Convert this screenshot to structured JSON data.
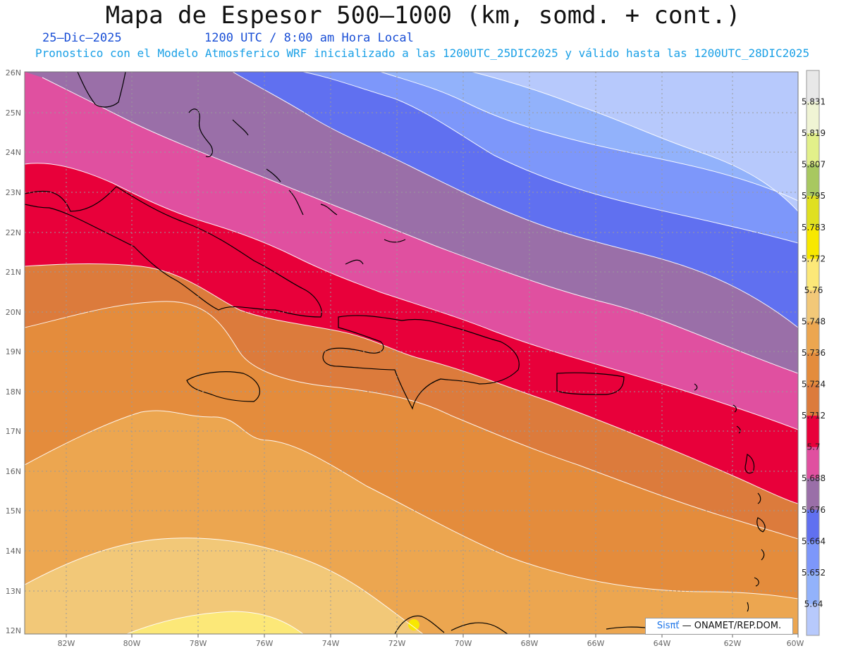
{
  "title": "Mapa de Espesor 500—1000 (km, somd. + cont.)",
  "date": "25—Dic—2025",
  "time": "1200 UTC / 8:00 am Hora Local",
  "subtitle": "Pronostico con el Modelo Atmosferico WRF inicializado a las 1200UTC_25DIC2025 y válido hasta las  1200UTC_28DIC2025",
  "credit": {
    "brand": "Sisπť",
    "org": "— ONAMET/REP.DOM."
  },
  "lon_labels": [
    "82W",
    "80W",
    "78W",
    "76W",
    "74W",
    "72W",
    "70W",
    "68W",
    "66W",
    "64W",
    "62W",
    "60W"
  ],
  "lat_labels": [
    "26N",
    "25N",
    "24N",
    "23N",
    "22N",
    "21N",
    "20N",
    "19N",
    "18N",
    "17N",
    "16N",
    "15N",
    "14N",
    "13N",
    "12N"
  ],
  "colorbar": {
    "labels": [
      "5.831",
      "5.819",
      "5.807",
      "5.795",
      "5.783",
      "5.772",
      "5.76",
      "5.748",
      "5.736",
      "5.724",
      "5.712",
      "5.7",
      "5.688",
      "5.676",
      "5.664",
      "5.652",
      "5.64"
    ],
    "colors": [
      "#e8e8e8",
      "#f0f4d4",
      "#e2f08a",
      "#a8c860",
      "#e0e020",
      "#f8e800",
      "#fce878",
      "#f2c878",
      "#eca650",
      "#e48c3c",
      "#dc7b3c",
      "#e8003a",
      "#e050a0",
      "#9a6fa8",
      "#6070f0",
      "#7d97fa",
      "#92b2fb",
      "#b7c9fc"
    ]
  }
}
